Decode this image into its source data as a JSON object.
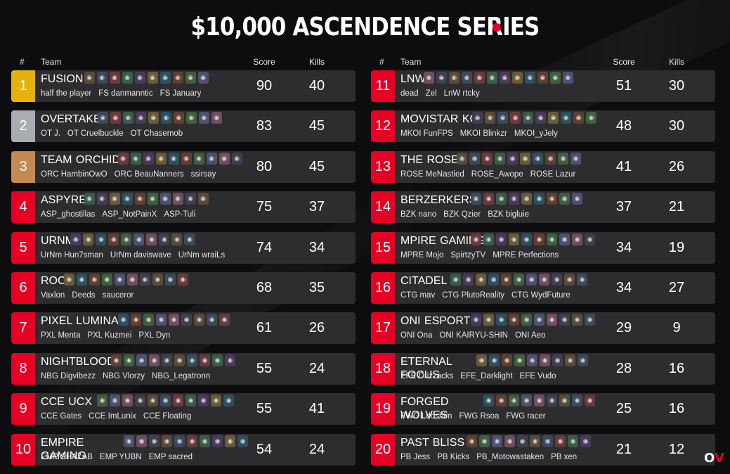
{
  "title": "$10,000 ASCENDENCE SERIES",
  "colors": {
    "gold": "#e5b10f",
    "silver": "#a6aeb2",
    "bronze": "#c38a52",
    "red": "#e60023",
    "row_bg": "#2d2d30",
    "background": "#0d0d10"
  },
  "headers": {
    "rank": "#",
    "team": "Team",
    "score": "Score",
    "kills": "Kills"
  },
  "logo": {
    "left": "O",
    "right": "V"
  },
  "teams": [
    {
      "rank": "1",
      "name": "FUSION",
      "players": [
        "half the player",
        "FS danmanntic",
        "FS January"
      ],
      "score": "90",
      "kills": "40",
      "rank_color": "gold",
      "legend_count": 10,
      "legend_offset": 0
    },
    {
      "rank": "2",
      "name": "OVERTAKE",
      "players": [
        "OT J.",
        "OT Cruelbuckle",
        "OT Chasemob"
      ],
      "score": "83",
      "kills": "45",
      "rank_color": "silver",
      "legend_count": 10,
      "legend_offset": 0
    },
    {
      "rank": "3",
      "name": "TEAM ORCHID",
      "players": [
        "ORC HambinOwO",
        "ORC BeauNanners",
        "ssirsay"
      ],
      "score": "80",
      "kills": "45",
      "rank_color": "bronze",
      "legend_count": 10,
      "legend_offset": 0
    },
    {
      "rank": "4",
      "name": "ASPYRE",
      "players": [
        "ASP_ghostillas",
        "ASP_NotPainX",
        "ASP-Tuli"
      ],
      "score": "75",
      "kills": "37",
      "rank_color": "red",
      "legend_count": 10,
      "legend_offset": 0
    },
    {
      "rank": "5",
      "name": "URNM",
      "players": [
        "UrNm Hun7sman",
        "UrNm daviswave",
        "UrNm wraiLs"
      ],
      "score": "74",
      "kills": "34",
      "rank_color": "red",
      "legend_count": 10,
      "legend_offset": 0
    },
    {
      "rank": "6",
      "name": "ROC",
      "players": [
        "Vaxlon",
        "Deeds",
        "sauceror"
      ],
      "score": "68",
      "kills": "35",
      "rank_color": "red",
      "legend_count": 10,
      "legend_offset": 0
    },
    {
      "rank": "7",
      "name": "PIXEL LUMINA",
      "players": [
        "PXL Menta",
        "PXL Kuzmei",
        "PXL Dyn"
      ],
      "score": "61",
      "kills": "26",
      "rank_color": "red",
      "legend_count": 9,
      "legend_offset": 60
    },
    {
      "rank": "8",
      "name": "NIGHTBLOOD",
      "players": [
        "NBG Digvibezz",
        "NBG Vlorzy",
        "NBG_Legatronn"
      ],
      "score": "55",
      "kills": "24",
      "rank_color": "red",
      "legend_count": 10,
      "legend_offset": 0
    },
    {
      "rank": "9",
      "name": "CCE UCX",
      "players": [
        "CCE Gates",
        "CCE ImLunix",
        "CCE Floating"
      ],
      "score": "55",
      "kills": "41",
      "rank_color": "red",
      "legend_count": 11,
      "legend_offset": 30
    },
    {
      "rank": "10",
      "name": "EMPIRE GAMING",
      "players": [
        "EMP SHAZAB",
        "EMP YUBN",
        "EMP sacred"
      ],
      "score": "54",
      "kills": "24",
      "rank_color": "red",
      "legend_count": 10,
      "legend_offset": 68
    },
    {
      "rank": "11",
      "name": "LNW",
      "players": [
        "dead",
        "Zel",
        "LnW rtcky"
      ],
      "score": "51",
      "kills": "30",
      "rank_color": "red",
      "legend_count": 12,
      "legend_offset": 0
    },
    {
      "rank": "12",
      "name": "MOVISTAR KOI",
      "players": [
        "MKOI FunFPS",
        "MKOI Blinkzr",
        "MKOI_yJely"
      ],
      "score": "48",
      "kills": "30",
      "rank_color": "red",
      "legend_count": 10,
      "legend_offset": 52
    },
    {
      "rank": "13",
      "name": "THE ROSE",
      "players": [
        "ROSE MeNastied",
        "ROSE_Awope",
        "ROSE Lazur"
      ],
      "score": "41",
      "kills": "26",
      "rank_color": "red",
      "legend_count": 10,
      "legend_offset": 30
    },
    {
      "rank": "14",
      "name": "BERZERKERS",
      "players": [
        "BZK nano",
        "BZK Qzier",
        "BZK bigluie"
      ],
      "score": "37",
      "kills": "21",
      "rank_color": "red",
      "legend_count": 9,
      "legend_offset": 0
    },
    {
      "rank": "15",
      "name": "MPIRE GAMING",
      "players": [
        "MPRE Mojo",
        "SpirtzyTV",
        "MPRE Perfections"
      ],
      "score": "34",
      "kills": "19",
      "rank_color": "red",
      "legend_count": 10,
      "legend_offset": 50
    },
    {
      "rank": "16",
      "name": "CITADEL",
      "players": [
        "CTG mav",
        "CTG PlutoReality",
        "CTG WydFuture"
      ],
      "score": "34",
      "kills": "27",
      "rank_color": "red",
      "legend_count": 11,
      "legend_offset": 0
    },
    {
      "rank": "17",
      "name": "ONI ESPORTS",
      "players": [
        "ONI Ona",
        "ONI KAIRYU-SHIN",
        "ONI Aeo"
      ],
      "score": "29",
      "kills": "9",
      "rank_color": "red",
      "legend_count": 10,
      "legend_offset": 50
    },
    {
      "rank": "18",
      "name": "ETERNAL FOCUS",
      "players": [
        "EFE Drizzacks",
        "EFE_Darklight",
        "EFE Vudo"
      ],
      "score": "28",
      "kills": "16",
      "rank_color": "red",
      "legend_count": 9,
      "legend_offset": 58
    },
    {
      "rank": "19",
      "name": "FORGED WOLVES",
      "players": [
        "FWG Ldoshim",
        "FWG Rsoa",
        "FWG racer"
      ],
      "score": "25",
      "kills": "16",
      "rank_color": "red",
      "legend_count": 9,
      "legend_offset": 68
    },
    {
      "rank": "20",
      "name": "PAST BLISS",
      "players": [
        "PB Jess",
        "PB Kicks",
        "PB_Motowastaken",
        "PB xen"
      ],
      "score": "21",
      "kills": "12",
      "rank_color": "red",
      "legend_count": 10,
      "legend_offset": 44
    }
  ]
}
